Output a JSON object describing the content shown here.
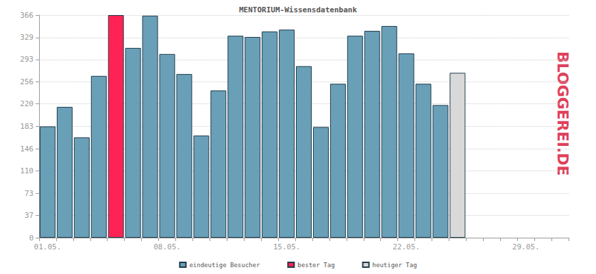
{
  "chart_data": {
    "type": "bar",
    "title": "MENTORIUM-Wissensdatenbank",
    "categories": [
      "01.05.",
      null,
      null,
      null,
      null,
      null,
      null,
      "08.05.",
      null,
      null,
      null,
      null,
      null,
      null,
      "15.05.",
      null,
      null,
      null,
      null,
      null,
      null,
      "22.05.",
      null,
      null,
      null,
      null,
      null,
      null,
      "29.05.",
      null,
      null
    ],
    "series": [
      {
        "name": "eindeutige Besucher",
        "color": "#6a9fb8",
        "values": [
          183,
          215,
          165,
          266,
          null,
          312,
          365,
          302,
          269,
          168,
          242,
          332,
          330,
          339,
          342,
          282,
          182,
          253,
          332,
          340,
          348,
          303,
          253,
          218,
          null,
          null,
          null,
          null,
          null,
          null,
          null
        ]
      },
      {
        "name": "bester Tag",
        "color": "#ff2255",
        "values": [
          null,
          null,
          null,
          null,
          366,
          null,
          null,
          null,
          null,
          null,
          null,
          null,
          null,
          null,
          null,
          null,
          null,
          null,
          null,
          null,
          null,
          null,
          null,
          null,
          null,
          null,
          null,
          null,
          null,
          null,
          null
        ]
      },
      {
        "name": "heutiger Tag",
        "color": "#d9d9d9",
        "values": [
          null,
          null,
          null,
          null,
          null,
          null,
          null,
          null,
          null,
          null,
          null,
          null,
          null,
          null,
          null,
          null,
          null,
          null,
          null,
          null,
          null,
          null,
          null,
          null,
          271,
          null,
          null,
          null,
          null,
          null,
          null
        ]
      }
    ],
    "ylim": [
      0,
      366
    ],
    "yticks": [
      0,
      37,
      73,
      110,
      146,
      183,
      220,
      256,
      293,
      329,
      366
    ],
    "grid": true,
    "legend": "bottom",
    "annotations": [
      "BLOGGEREI.DE"
    ]
  }
}
